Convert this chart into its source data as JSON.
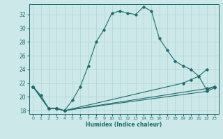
{
  "xlabel": "Humidex (Indice chaleur)",
  "xlim": [
    -0.5,
    23.5
  ],
  "ylim": [
    17.5,
    33.5
  ],
  "xticks": [
    0,
    1,
    2,
    3,
    4,
    5,
    6,
    7,
    8,
    9,
    10,
    11,
    12,
    13,
    14,
    15,
    16,
    17,
    18,
    19,
    20,
    21,
    22,
    23
  ],
  "yticks": [
    18,
    20,
    22,
    24,
    26,
    28,
    30,
    32
  ],
  "bg_color": "#cde8e8",
  "line_color": "#1e6b6b",
  "grid_color": "#aed4d4",
  "line1_x": [
    0,
    1,
    2,
    3,
    4,
    5,
    6,
    7,
    8,
    9,
    10,
    11,
    12,
    13,
    14,
    15,
    16,
    17,
    18,
    19,
    20,
    21,
    22,
    23
  ],
  "line1_y": [
    21.5,
    20.2,
    18.3,
    18.3,
    18.0,
    19.5,
    21.5,
    24.5,
    28.0,
    29.8,
    32.2,
    32.5,
    32.2,
    32.0,
    33.1,
    32.5,
    28.5,
    26.8,
    25.2,
    24.5,
    24.0,
    23.0,
    21.0,
    21.5
  ],
  "line2_x": [
    0,
    2,
    3,
    4,
    22,
    23
  ],
  "line2_y": [
    21.5,
    18.3,
    18.3,
    18.0,
    20.8,
    21.3
  ],
  "line3_x": [
    0,
    2,
    3,
    4,
    22,
    23
  ],
  "line3_y": [
    21.5,
    18.3,
    18.3,
    18.0,
    21.2,
    21.5
  ],
  "line4_x": [
    0,
    2,
    3,
    4,
    19,
    20,
    21,
    22
  ],
  "line4_y": [
    21.5,
    18.3,
    18.3,
    18.0,
    22.0,
    22.5,
    23.0,
    24.0
  ]
}
